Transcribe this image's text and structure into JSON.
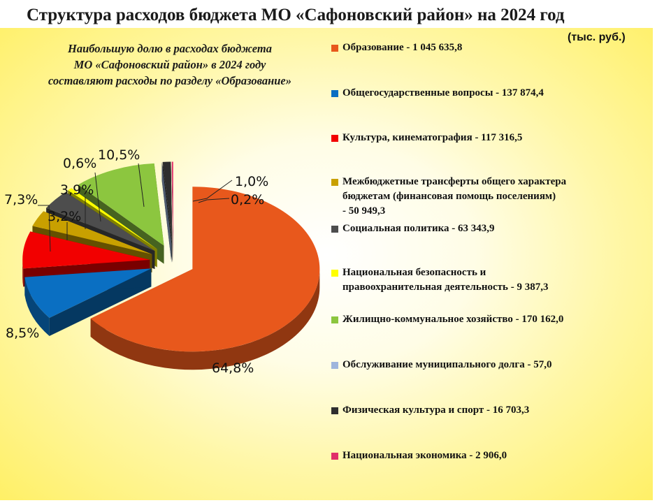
{
  "title": "Структура расходов бюджета МО «Сафоновский район» на 2024 год",
  "units": "(тыс. руб.)",
  "note_lines": [
    "Наибольшую долю в расходах бюджета",
    "МО «Сафоновский район» в 2024 году",
    "составляют расходы по разделу «Образование»"
  ],
  "chart_data": {
    "type": "pie",
    "title": "Структура расходов бюджета МО «Сафоновский район» на 2024 год",
    "units": "тыс. руб.",
    "legend_position": "right",
    "slices": [
      {
        "label": "Образование - 1 045 635,8",
        "value": 1045635.8,
        "percent": "64,8%",
        "color": "#e8581c"
      },
      {
        "label": "Общегосударственные вопросы - 137 874,4",
        "value": 137874.4,
        "percent": "8,5%",
        "color": "#0a6fc2"
      },
      {
        "label": "Культура, кинематография - 117 316,5",
        "value": 117316.5,
        "percent": "7,3%",
        "color": "#f20000"
      },
      {
        "label": "Межбюджетные трансферты общего характера бюджетам (финансовая помощь поселениям) - 50 949,3",
        "value": 50949.3,
        "percent": "3,2%",
        "color": "#c8a000"
      },
      {
        "label": "Социальная политика - 63 343,9",
        "value": 63343.9,
        "percent": "3,9%",
        "color": "#4d4d4d"
      },
      {
        "label": "Национальная безопасность и правоохранительная деятельность - 9 387,3",
        "value": 9387.3,
        "percent": "0,6%",
        "color": "#ffff00"
      },
      {
        "label": "Жилищно-коммунальное хозяйство - 170 162,0",
        "value": 170162.0,
        "percent": "10,5%",
        "color": "#8cc63f"
      },
      {
        "label": "Обслуживание муниципального долга - 57,0",
        "value": 57.0,
        "percent": "",
        "color": "#9eb5dc"
      },
      {
        "label": "Физическая культура и спорт - 16 703,3",
        "value": 16703.3,
        "percent": "1,0%",
        "color": "#2e2e2e"
      },
      {
        "label": "Национальная экономика - 2 906,0",
        "value": 2906.0,
        "percent": "0,2%",
        "color": "#e0306a"
      }
    ]
  },
  "legend": [
    {
      "lines": [
        "Образование - 1 045 635,8"
      ],
      "color": "#e8581c"
    },
    {
      "lines": [
        "Общегосударственные вопросы - 137 874,4"
      ],
      "color": "#0a6fc2"
    },
    {
      "lines": [
        "Культура, кинематография - 117 316,5"
      ],
      "color": "#f20000"
    },
    {
      "lines": [
        "Межбюджетные трансферты общего характера",
        "бюджетам (финансовая помощь поселениям)",
        "- 50 949,3"
      ],
      "color": "#c8a000"
    },
    {
      "lines": [
        "Социальная политика - 63 343,9"
      ],
      "color": "#4d4d4d"
    },
    {
      "lines": [
        "Национальная безопасность и",
        "правоохранительная деятельность - 9 387,3"
      ],
      "color": "#ffff00"
    },
    {
      "lines": [
        "Жилищно-коммунальное хозяйство - 170 162,0"
      ],
      "color": "#8cc63f"
    },
    {
      "lines": [
        "Обслуживание муниципального долга - 57,0"
      ],
      "color": "#9eb5dc"
    },
    {
      "lines": [
        "Физическая культура и спорт - 16 703,3"
      ],
      "color": "#2e2e2e"
    },
    {
      "lines": [
        "Национальная экономика - 2 906,0"
      ],
      "color": "#e0306a"
    }
  ]
}
